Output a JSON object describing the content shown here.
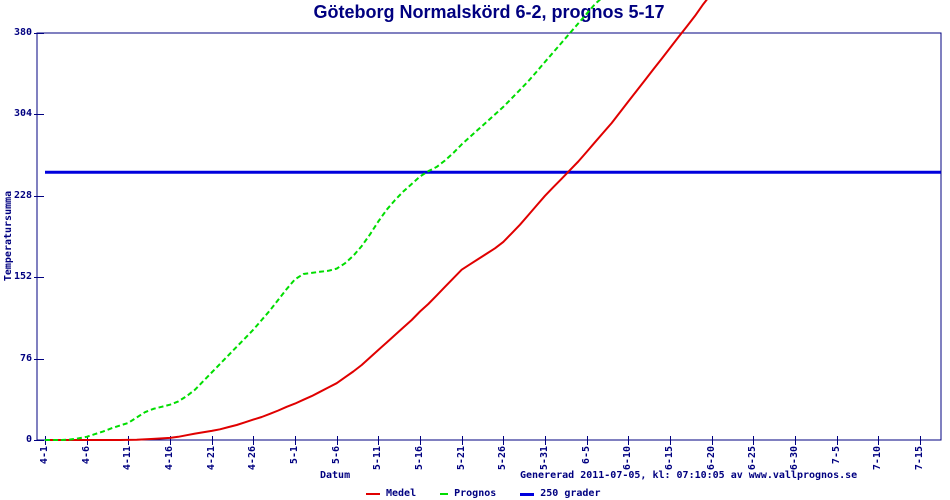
{
  "title": "Göteborg Normalskörd 6-2, prognos 5-17",
  "footer": {
    "x_axis_title": "Datum",
    "generated": "Genererad 2011-07-05, kl: 07:10:05 av www.vallprognos.se"
  },
  "colors": {
    "axis": "#000080",
    "text": "#000080",
    "title": "#000080",
    "medel": "#e00000",
    "prognos": "#00dd00",
    "threshold": "#0000dd",
    "background": "#ffffff"
  },
  "legend": [
    {
      "label": "Medel",
      "color": "#e00000",
      "style": "solid"
    },
    {
      "label": "Prognos",
      "color": "#00dd00",
      "style": "dashed"
    },
    {
      "label": "250 grader",
      "color": "#0000dd",
      "style": "solid"
    }
  ],
  "chart_data": {
    "type": "line",
    "title": "Göteborg Normalskörd 6-2, prognos 5-17",
    "xlabel": "Datum",
    "ylabel": "Temperatursumma",
    "grid": false,
    "legend_position": "bottom",
    "ylim": [
      0,
      380
    ],
    "y_ticks": [
      0,
      76,
      152,
      228,
      304,
      380
    ],
    "x_ticks": [
      {
        "label": "4-1",
        "day": 0
      },
      {
        "label": "4-6",
        "day": 5
      },
      {
        "label": "4-11",
        "day": 10
      },
      {
        "label": "4-16",
        "day": 15
      },
      {
        "label": "4-21",
        "day": 20
      },
      {
        "label": "4-26",
        "day": 25
      },
      {
        "label": "5-1",
        "day": 30
      },
      {
        "label": "5-6",
        "day": 35
      },
      {
        "label": "5-11",
        "day": 40
      },
      {
        "label": "5-16",
        "day": 45
      },
      {
        "label": "5-21",
        "day": 50
      },
      {
        "label": "5-26",
        "day": 55
      },
      {
        "label": "5-31",
        "day": 60
      },
      {
        "label": "6-5",
        "day": 65
      },
      {
        "label": "6-10",
        "day": 70
      },
      {
        "label": "6-15",
        "day": 75
      },
      {
        "label": "6-20",
        "day": 80
      },
      {
        "label": "6-25",
        "day": 85
      },
      {
        "label": "6-30",
        "day": 90
      },
      {
        "label": "7-5",
        "day": 95
      },
      {
        "label": "7-10",
        "day": 100
      },
      {
        "label": "7-15",
        "day": 105
      }
    ],
    "series": [
      {
        "name": "250 grader",
        "color": "#0000dd",
        "style": "solid",
        "width": 3,
        "points": [
          [
            0,
            250
          ],
          [
            107.5,
            250
          ]
        ]
      },
      {
        "name": "Medel",
        "color": "#e00000",
        "style": "solid",
        "width": 2,
        "points": [
          [
            0,
            0
          ],
          [
            5,
            0
          ],
          [
            9,
            0
          ],
          [
            11,
            0.3
          ],
          [
            13,
            1
          ],
          [
            15,
            2
          ],
          [
            16,
            3
          ],
          [
            17,
            4.5
          ],
          [
            18,
            6
          ],
          [
            19,
            7.2
          ],
          [
            20,
            8.5
          ],
          [
            21,
            10
          ],
          [
            22,
            12
          ],
          [
            23,
            14
          ],
          [
            24,
            16.5
          ],
          [
            25,
            19
          ],
          [
            26,
            21.5
          ],
          [
            27,
            24.5
          ],
          [
            28,
            27.5
          ],
          [
            29,
            31
          ],
          [
            30,
            34
          ],
          [
            31,
            37.5
          ],
          [
            32,
            41
          ],
          [
            33,
            45
          ],
          [
            34,
            49
          ],
          [
            35,
            53
          ],
          [
            36,
            58.5
          ],
          [
            37,
            64
          ],
          [
            38,
            70
          ],
          [
            39,
            77
          ],
          [
            40,
            84
          ],
          [
            41,
            91
          ],
          [
            42,
            98
          ],
          [
            43,
            105
          ],
          [
            44,
            112
          ],
          [
            45,
            120
          ],
          [
            46,
            127
          ],
          [
            47,
            135
          ],
          [
            48,
            143
          ],
          [
            49,
            151
          ],
          [
            50,
            159
          ],
          [
            51,
            164
          ],
          [
            52,
            169
          ],
          [
            53,
            174
          ],
          [
            54,
            179
          ],
          [
            55,
            185
          ],
          [
            56,
            193
          ],
          [
            57,
            201
          ],
          [
            58,
            210
          ],
          [
            59,
            219
          ],
          [
            60,
            228
          ],
          [
            61,
            236
          ],
          [
            62,
            244
          ],
          [
            63,
            252
          ],
          [
            64,
            260
          ],
          [
            65,
            269
          ],
          [
            66,
            278
          ],
          [
            67,
            287
          ],
          [
            68,
            296
          ],
          [
            69,
            306
          ],
          [
            70,
            316
          ],
          [
            71,
            326
          ],
          [
            72,
            336
          ],
          [
            73,
            346
          ],
          [
            74,
            356
          ],
          [
            75,
            366
          ],
          [
            76,
            376
          ],
          [
            77,
            386
          ],
          [
            78,
            396
          ],
          [
            79,
            407
          ],
          [
            80,
            417
          ]
        ]
      },
      {
        "name": "Prognos",
        "color": "#00dd00",
        "style": "dashed",
        "width": 2,
        "points": [
          [
            0,
            0
          ],
          [
            1,
            0
          ],
          [
            2,
            0
          ],
          [
            3,
            0.5
          ],
          [
            4,
            1.5
          ],
          [
            5,
            3
          ],
          [
            6,
            5.5
          ],
          [
            7,
            8
          ],
          [
            8,
            11
          ],
          [
            9,
            13.5
          ],
          [
            10,
            16
          ],
          [
            11,
            21
          ],
          [
            12,
            26
          ],
          [
            13,
            29
          ],
          [
            14,
            31
          ],
          [
            15,
            33
          ],
          [
            16,
            36
          ],
          [
            17,
            41
          ],
          [
            18,
            47
          ],
          [
            19,
            55
          ],
          [
            20,
            63
          ],
          [
            21,
            71
          ],
          [
            22,
            79
          ],
          [
            23,
            87
          ],
          [
            24,
            95
          ],
          [
            25,
            103
          ],
          [
            26,
            112
          ],
          [
            27,
            121
          ],
          [
            28,
            131
          ],
          [
            29,
            141
          ],
          [
            30,
            150
          ],
          [
            31,
            155
          ],
          [
            32,
            156
          ],
          [
            33,
            157
          ],
          [
            34,
            158
          ],
          [
            35,
            160
          ],
          [
            36,
            165
          ],
          [
            37,
            172
          ],
          [
            38,
            181
          ],
          [
            39,
            192
          ],
          [
            40,
            204
          ],
          [
            41,
            215
          ],
          [
            42,
            224
          ],
          [
            43,
            232
          ],
          [
            44,
            239
          ],
          [
            45,
            246
          ],
          [
            46,
            251
          ],
          [
            47,
            255
          ],
          [
            48,
            261
          ],
          [
            49,
            268
          ],
          [
            50,
            276
          ],
          [
            51,
            283
          ],
          [
            52,
            290
          ],
          [
            53,
            297
          ],
          [
            54,
            304
          ],
          [
            55,
            311
          ],
          [
            56,
            319
          ],
          [
            57,
            327
          ],
          [
            58,
            335
          ],
          [
            59,
            344
          ],
          [
            60,
            353
          ],
          [
            61,
            362
          ],
          [
            62,
            371
          ],
          [
            63,
            380
          ],
          [
            64,
            389
          ],
          [
            65,
            398
          ],
          [
            66,
            407
          ],
          [
            67,
            414
          ]
        ]
      }
    ]
  }
}
